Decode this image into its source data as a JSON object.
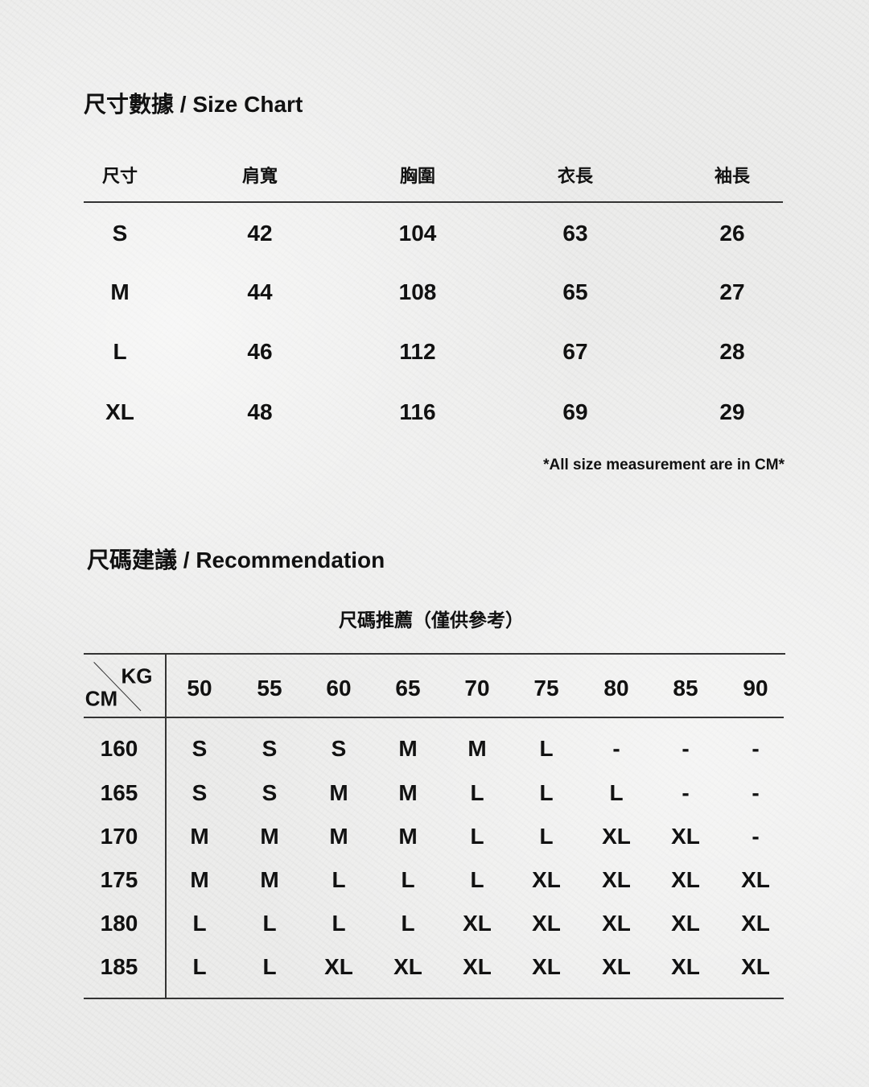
{
  "size_chart": {
    "title": "尺寸數據 / Size Chart",
    "headers": [
      "尺寸",
      "肩寬",
      "胸圍",
      "衣長",
      "袖長"
    ],
    "rows": [
      [
        "S",
        "42",
        "104",
        "63",
        "26"
      ],
      [
        "M",
        "44",
        "108",
        "65",
        "27"
      ],
      [
        "L",
        "46",
        "112",
        "67",
        "28"
      ],
      [
        "XL",
        "48",
        "116",
        "69",
        "29"
      ]
    ],
    "note": "*All size measurement are in CM*"
  },
  "recommendation": {
    "title": "尺碼建議 / Recommendation",
    "subtitle": "尺碼推薦（僅供參考）",
    "corner_top": "KG",
    "corner_bottom": "CM",
    "weights": [
      "50",
      "55",
      "60",
      "65",
      "70",
      "75",
      "80",
      "85",
      "90"
    ],
    "rows": [
      {
        "height": "160",
        "sizes": [
          "S",
          "S",
          "S",
          "M",
          "M",
          "L",
          "-",
          "-",
          "-"
        ]
      },
      {
        "height": "165",
        "sizes": [
          "S",
          "S",
          "M",
          "M",
          "L",
          "L",
          "L",
          "-",
          "-"
        ]
      },
      {
        "height": "170",
        "sizes": [
          "M",
          "M",
          "M",
          "M",
          "L",
          "L",
          "XL",
          "XL",
          "-"
        ]
      },
      {
        "height": "175",
        "sizes": [
          "M",
          "M",
          "L",
          "L",
          "L",
          "XL",
          "XL",
          "XL",
          "XL"
        ]
      },
      {
        "height": "180",
        "sizes": [
          "L",
          "L",
          "L",
          "L",
          "XL",
          "XL",
          "XL",
          "XL",
          "XL"
        ]
      },
      {
        "height": "185",
        "sizes": [
          "L",
          "L",
          "XL",
          "XL",
          "XL",
          "XL",
          "XL",
          "XL",
          "XL"
        ]
      }
    ]
  }
}
